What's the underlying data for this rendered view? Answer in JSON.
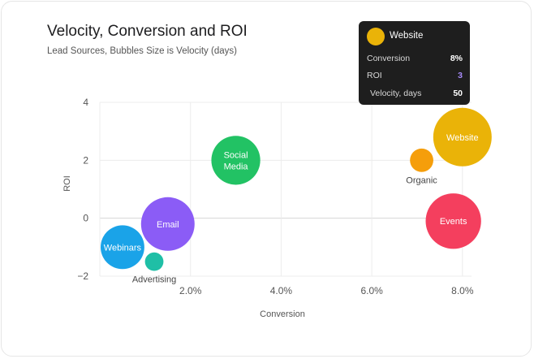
{
  "title": "Velocity, Conversion and ROI",
  "subtitle": "Lead Sources, Bubbles Size is Velocity (days)",
  "chart_data": {
    "type": "bubble",
    "title": "Velocity, Conversion and ROI",
    "subtitle": "Lead Sources, Bubbles Size is Velocity (days)",
    "xlabel": "Conversion",
    "ylabel": "ROI",
    "xlim": [
      0,
      8.2
    ],
    "ylim": [
      -2,
      4
    ],
    "x_ticks": [
      2,
      4,
      6,
      8
    ],
    "x_tick_labels": [
      "2.0%",
      "4.0%",
      "6.0%",
      "8.0%"
    ],
    "y_ticks": [
      -2,
      0,
      2,
      4
    ],
    "y_tick_labels": [
      "−2",
      "0",
      "2",
      "4"
    ],
    "grid": true,
    "points": [
      {
        "name": "Webinars",
        "x": 0.5,
        "y": -1,
        "velocity": 28,
        "color": "#1aa3e8",
        "label_pos": "inside"
      },
      {
        "name": "Advertising",
        "x": 1.2,
        "y": -1.5,
        "velocity": 5,
        "color": "#1fbfa6",
        "label_pos": "below"
      },
      {
        "name": "Email",
        "x": 1.5,
        "y": -0.2,
        "velocity": 42,
        "color": "#8b5cf6",
        "label_pos": "inside"
      },
      {
        "name": "Social Media",
        "label_lines": [
          "Social",
          "Media"
        ],
        "x": 3,
        "y": 2,
        "velocity": 35,
        "color": "#22c264",
        "label_pos": "inside"
      },
      {
        "name": "Organic",
        "x": 7.1,
        "y": 2,
        "velocity": 8,
        "color": "#f59e0b",
        "label_pos": "below"
      },
      {
        "name": "Events",
        "x": 7.8,
        "y": -0.1,
        "velocity": 45,
        "color": "#f43f5e",
        "label_pos": "inside"
      },
      {
        "name": "Website",
        "x": 8,
        "y": 2.8,
        "velocity": 50,
        "color": "#eab308",
        "label_pos": "inside"
      }
    ]
  },
  "tooltip": {
    "name": "Website",
    "color": "#eab308",
    "rows": [
      {
        "label": "Conversion",
        "value": "8%",
        "value_color": "#ffffff"
      },
      {
        "label": "ROI",
        "value": "3",
        "value_color": "#a78bfa"
      },
      {
        "label": "Velocity, days",
        "value": "50",
        "value_color": "#ffffff"
      }
    ]
  }
}
